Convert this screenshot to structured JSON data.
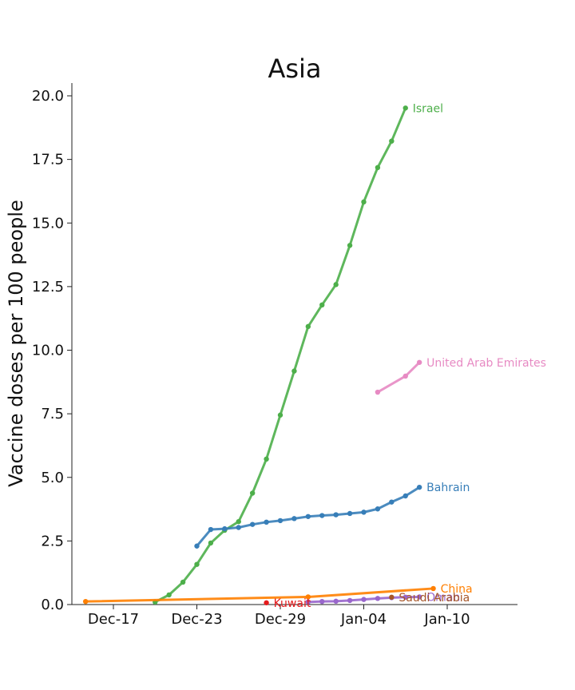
{
  "chart_data": {
    "type": "line",
    "title": "Asia",
    "xlabel": "",
    "ylabel": "Vaccine doses per 100 people",
    "x_ticks": [
      "Dec-17",
      "Dec-23",
      "Dec-29",
      "Jan-04",
      "Jan-10"
    ],
    "y_ticks": [
      "0.0",
      "2.5",
      "5.0",
      "7.5",
      "10.0",
      "12.5",
      "15.0",
      "17.5",
      "20.0"
    ],
    "ylim": [
      0,
      20.5
    ],
    "xlim": [
      "2020-12-15",
      "2021-01-15"
    ],
    "grid": false,
    "legend": "inline-labels",
    "series": [
      {
        "name": "Israel",
        "color": "#4daf4a",
        "points": [
          [
            "2020-12-20",
            0.1
          ],
          [
            "2020-12-21",
            0.38
          ],
          [
            "2020-12-22",
            0.88
          ],
          [
            "2020-12-23",
            1.58
          ],
          [
            "2020-12-24",
            2.42
          ],
          [
            "2020-12-25",
            2.92
          ],
          [
            "2020-12-26",
            3.26
          ],
          [
            "2020-12-27",
            4.38
          ],
          [
            "2020-12-28",
            5.72
          ],
          [
            "2020-12-29",
            7.45
          ],
          [
            "2020-12-30",
            9.18
          ],
          [
            "2020-12-31",
            10.93
          ],
          [
            "2021-01-01",
            11.78
          ],
          [
            "2021-01-02",
            12.58
          ],
          [
            "2021-01-03",
            14.12
          ],
          [
            "2021-01-04",
            15.83
          ],
          [
            "2021-01-05",
            17.18
          ],
          [
            "2021-01-06",
            18.22
          ],
          [
            "2021-01-07",
            19.52
          ]
        ]
      },
      {
        "name": "United Arab Emirates",
        "color": "#e78ac3",
        "points": [
          [
            "2021-01-05",
            8.35
          ],
          [
            "2021-01-07",
            8.98
          ],
          [
            "2021-01-08",
            9.52
          ]
        ]
      },
      {
        "name": "Bahrain",
        "color": "#377eb8",
        "points": [
          [
            "2020-12-23",
            2.3
          ],
          [
            "2020-12-24",
            2.95
          ],
          [
            "2020-12-25",
            2.98
          ],
          [
            "2020-12-26",
            3.03
          ],
          [
            "2020-12-27",
            3.15
          ],
          [
            "2020-12-28",
            3.24
          ],
          [
            "2020-12-29",
            3.3
          ],
          [
            "2020-12-30",
            3.38
          ],
          [
            "2020-12-31",
            3.46
          ],
          [
            "2021-01-01",
            3.5
          ],
          [
            "2021-01-02",
            3.53
          ],
          [
            "2021-01-03",
            3.58
          ],
          [
            "2021-01-04",
            3.63
          ],
          [
            "2021-01-05",
            3.76
          ],
          [
            "2021-01-06",
            4.03
          ],
          [
            "2021-01-07",
            4.27
          ],
          [
            "2021-01-08",
            4.61
          ]
        ]
      },
      {
        "name": "China",
        "color": "#ff7f00",
        "points": [
          [
            "2020-12-15",
            0.12
          ],
          [
            "2020-12-31",
            0.3
          ],
          [
            "2021-01-09",
            0.63
          ]
        ]
      },
      {
        "name": "Oman",
        "color": "#9966cc",
        "points": [
          [
            "2020-12-31",
            0.1
          ],
          [
            "2021-01-01",
            0.12
          ],
          [
            "2021-01-02",
            0.13
          ],
          [
            "2021-01-03",
            0.16
          ],
          [
            "2021-01-04",
            0.2
          ],
          [
            "2021-01-05",
            0.24
          ],
          [
            "2021-01-06",
            0.27
          ],
          [
            "2021-01-07",
            0.29
          ],
          [
            "2021-01-08",
            0.3
          ]
        ]
      },
      {
        "name": "Saudi Arabia",
        "color": "#a65628",
        "points": [
          [
            "2021-01-06",
            0.29
          ]
        ]
      },
      {
        "name": "Kuwait",
        "color": "#e41a1c",
        "points": [
          [
            "2020-12-28",
            0.07
          ]
        ]
      }
    ]
  }
}
